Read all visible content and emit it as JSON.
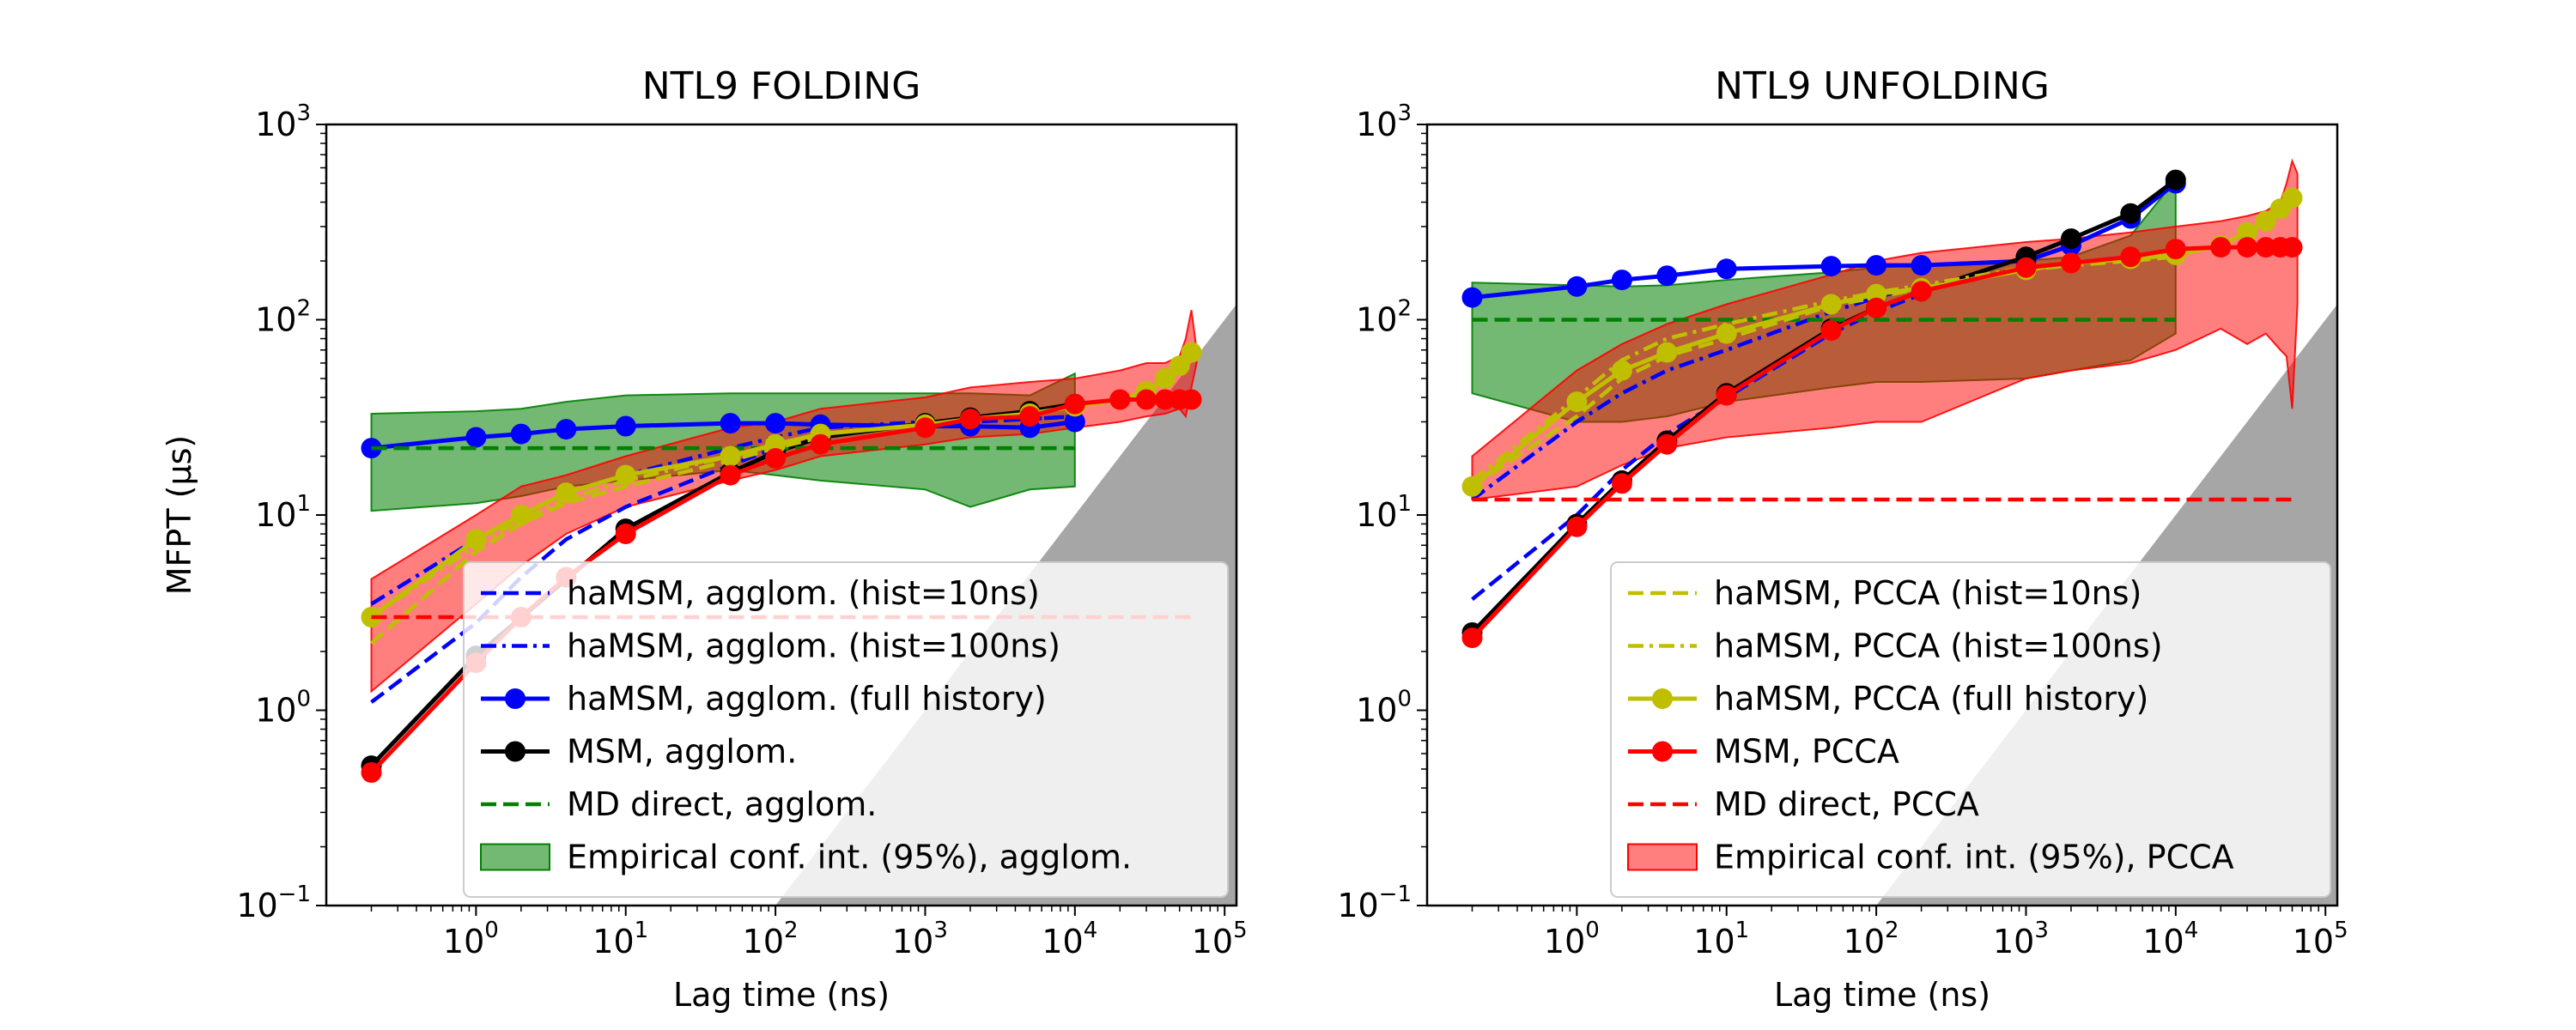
{
  "chart_data": [
    {
      "type": "line",
      "title": "NTL9 FOLDING",
      "xlabel": "Lag time (ns)",
      "ylabel": "MFPT (μs)",
      "xscale": "log",
      "yscale": "log",
      "xlim": [
        0.1,
        120000
      ],
      "ylim": [
        0.1,
        1000
      ],
      "x_ticks": [
        {
          "base": "10",
          "exp": "0"
        },
        {
          "base": "10",
          "exp": "1"
        },
        {
          "base": "10",
          "exp": "2"
        },
        {
          "base": "10",
          "exp": "3"
        },
        {
          "base": "10",
          "exp": "4"
        },
        {
          "base": "10",
          "exp": "5"
        }
      ],
      "y_ticks": [
        {
          "base": "10",
          "exp": "−1"
        },
        {
          "base": "10",
          "exp": "0"
        },
        {
          "base": "10",
          "exp": "1"
        },
        {
          "base": "10",
          "exp": "2"
        },
        {
          "base": "10",
          "exp": "3"
        }
      ],
      "legend_position": "lower-right",
      "series": [
        {
          "name": "haMSM, agglom. (hist=10ns)",
          "color": "#0000ff",
          "style": "dashed",
          "marker": false,
          "legend": true,
          "x": [
            0.2,
            1,
            2,
            4,
            10,
            50,
            100,
            200,
            1000,
            2000,
            5000,
            10000
          ],
          "y": [
            1.1,
            2.8,
            4.8,
            7.5,
            11,
            18,
            22,
            26,
            29,
            30,
            31,
            32
          ]
        },
        {
          "name": "haMSM, agglom. (hist=100ns)",
          "color": "#0000ff",
          "style": "dashdot",
          "marker": false,
          "legend": true,
          "x": [
            0.2,
            1,
            2,
            4,
            10,
            50,
            100,
            200,
            1000,
            2000,
            5000,
            10000
          ],
          "y": [
            3.5,
            7.5,
            10,
            13,
            16,
            22,
            25,
            28,
            30,
            30,
            31,
            32
          ]
        },
        {
          "name": "haMSM, agglom. (full history)",
          "color": "#0000ff",
          "style": "solid",
          "marker": true,
          "legend": true,
          "x": [
            0.2,
            1,
            2,
            4,
            10,
            50,
            100,
            200,
            1000,
            2000,
            5000,
            10000
          ],
          "y": [
            22,
            25,
            26,
            27.5,
            28.5,
            29.5,
            29.5,
            29,
            28.5,
            28.5,
            28,
            30
          ]
        },
        {
          "name": "MSM, agglom.",
          "color": "#000000",
          "style": "solid",
          "marker": true,
          "legend": true,
          "x": [
            0.2,
            1,
            10,
            50,
            100,
            200,
            1000,
            2000,
            5000,
            10000
          ],
          "y": [
            0.52,
            1.9,
            8.5,
            16.5,
            21,
            25,
            29.5,
            31.5,
            34,
            37
          ]
        },
        {
          "name": "MD direct, agglom.",
          "color": "#008000",
          "style": "dashed",
          "marker": false,
          "legend": true,
          "x": [
            0.2,
            10000
          ],
          "y": [
            22,
            22
          ]
        },
        {
          "name": "haMSM, PCCA (hist=10ns)",
          "color": "#bfbf00",
          "style": "dashed",
          "marker": false,
          "legend": false,
          "x": [
            0.2,
            1,
            2,
            4,
            10,
            50,
            100,
            200
          ],
          "y": [
            2.2,
            6.5,
            9,
            11.5,
            14,
            19,
            22,
            25
          ]
        },
        {
          "name": "haMSM, PCCA (hist=100ns)",
          "color": "#bfbf00",
          "style": "dashdot",
          "marker": false,
          "legend": false,
          "x": [
            0.2,
            1,
            2,
            4,
            10,
            50,
            100,
            200
          ],
          "y": [
            3,
            7,
            9.5,
            12,
            15,
            20,
            23,
            26
          ]
        },
        {
          "name": "haMSM, PCCA (full history)",
          "color": "#bfbf00",
          "style": "solid",
          "marker": true,
          "legend": false,
          "x": [
            0.2,
            1,
            2,
            4,
            10,
            50,
            100,
            200,
            1000,
            2000,
            5000,
            10000,
            20000,
            30000,
            40000,
            50000,
            60000
          ],
          "y": [
            3,
            7.5,
            10,
            13,
            16,
            20,
            23,
            26,
            29,
            31,
            33,
            36,
            39,
            43,
            50,
            58,
            68
          ]
        },
        {
          "name": "MSM, PCCA",
          "color": "#ff0000",
          "style": "solid",
          "marker": true,
          "legend": false,
          "x": [
            0.2,
            1,
            2,
            4,
            10,
            50,
            100,
            200,
            1000,
            2000,
            5000,
            10000,
            20000,
            30000,
            40000,
            50000,
            60000
          ],
          "y": [
            0.48,
            1.75,
            3,
            4.8,
            8,
            16,
            19.5,
            23,
            28,
            31,
            32,
            37,
            39,
            39,
            39,
            39,
            39
          ]
        },
        {
          "name": "MD direct, PCCA",
          "color": "#ff0000",
          "style": "dashed",
          "marker": false,
          "legend": false,
          "x": [
            0.2,
            60000
          ],
          "y": [
            3,
            3
          ]
        }
      ],
      "bands": [
        {
          "name": "Empirical conf. int. (95%), agglom.",
          "color": "#008000",
          "opacity": 0.55,
          "legend": true,
          "x": [
            0.2,
            1,
            2,
            4,
            10,
            50,
            100,
            200,
            1000,
            2000,
            5000,
            10000
          ],
          "lower": [
            10.5,
            11.5,
            12.5,
            14,
            15,
            17,
            16,
            15,
            13.5,
            11,
            13.5,
            14
          ],
          "upper": [
            33,
            34,
            35,
            38,
            41,
            42,
            42,
            42,
            42,
            42,
            41,
            53
          ]
        },
        {
          "name": "Empirical conf. int. (95%), PCCA",
          "color": "#ff0000",
          "opacity": 0.5,
          "legend": false,
          "x": [
            0.2,
            1,
            2,
            4,
            10,
            50,
            100,
            200,
            1000,
            2000,
            5000,
            10000,
            20000,
            30000,
            40000,
            50000,
            55000,
            60000,
            65000
          ],
          "lower": [
            1.25,
            3.5,
            5.5,
            8,
            11,
            15,
            17,
            20,
            23,
            25,
            26,
            28,
            30,
            32,
            33,
            35,
            32,
            45,
            60
          ],
          "upper": [
            4.7,
            10,
            14,
            16,
            20,
            28,
            30,
            35,
            40,
            45,
            48,
            50,
            55,
            60,
            60,
            65,
            80,
            112,
            70
          ]
        }
      ],
      "shaded_region": {
        "color": "#a6a6a6"
      }
    },
    {
      "type": "line",
      "title": "NTL9 UNFOLDING",
      "xlabel": "Lag time (ns)",
      "ylabel": "",
      "xscale": "log",
      "yscale": "log",
      "xlim": [
        0.1,
        120000
      ],
      "ylim": [
        0.1,
        1000
      ],
      "x_ticks": [
        {
          "base": "10",
          "exp": "0"
        },
        {
          "base": "10",
          "exp": "1"
        },
        {
          "base": "10",
          "exp": "2"
        },
        {
          "base": "10",
          "exp": "3"
        },
        {
          "base": "10",
          "exp": "4"
        },
        {
          "base": "10",
          "exp": "5"
        }
      ],
      "y_ticks": [
        {
          "base": "10",
          "exp": "−1"
        },
        {
          "base": "10",
          "exp": "0"
        },
        {
          "base": "10",
          "exp": "1"
        },
        {
          "base": "10",
          "exp": "2"
        },
        {
          "base": "10",
          "exp": "3"
        }
      ],
      "legend_position": "lower-right",
      "series": [
        {
          "name": "haMSM, agglom. (hist=10ns)",
          "color": "#0000ff",
          "style": "dashed",
          "marker": false,
          "legend": false,
          "x": [
            0.2,
            1,
            2,
            4,
            10,
            50,
            100,
            200
          ],
          "y": [
            3.7,
            10,
            17,
            26,
            40,
            85,
            110,
            135
          ]
        },
        {
          "name": "haMSM, agglom. (hist=100ns)",
          "color": "#0000ff",
          "style": "dashdot",
          "marker": false,
          "legend": false,
          "x": [
            0.2,
            1,
            2,
            4,
            10,
            50,
            100,
            200
          ],
          "y": [
            12,
            30,
            42,
            55,
            70,
            110,
            130,
            150
          ]
        },
        {
          "name": "haMSM, agglom. (full history)",
          "color": "#0000ff",
          "style": "solid",
          "marker": true,
          "legend": false,
          "x": [
            0.2,
            1,
            2,
            4,
            10,
            50,
            100,
            200,
            1000,
            2000,
            5000,
            10000
          ],
          "y": [
            130,
            148,
            160,
            168,
            182,
            188,
            190,
            190,
            200,
            240,
            330,
            500
          ]
        },
        {
          "name": "MSM, agglom.",
          "color": "#000000",
          "style": "solid",
          "marker": true,
          "legend": false,
          "x": [
            0.2,
            1,
            2,
            4,
            10,
            50,
            100,
            200,
            1000,
            2000,
            5000,
            10000
          ],
          "y": [
            2.5,
            9,
            15,
            24,
            42,
            90,
            115,
            140,
            210,
            260,
            350,
            520
          ]
        },
        {
          "name": "MD direct, agglom.",
          "color": "#008000",
          "style": "dashed",
          "marker": false,
          "legend": false,
          "x": [
            0.2,
            10000
          ],
          "y": [
            100,
            100
          ]
        },
        {
          "name": "haMSM, PCCA (hist=10ns)",
          "color": "#bfbf00",
          "style": "dashed",
          "marker": false,
          "legend": true,
          "x": [
            0.2,
            1,
            2,
            4,
            10,
            50,
            100,
            200,
            1000,
            2000,
            5000,
            10000
          ],
          "y": [
            14,
            32,
            50,
            65,
            80,
            118,
            130,
            145,
            180,
            190,
            200,
            210
          ]
        },
        {
          "name": "haMSM, PCCA (hist=100ns)",
          "color": "#bfbf00",
          "style": "dashdot",
          "marker": false,
          "legend": true,
          "x": [
            0.2,
            1,
            2,
            4,
            10,
            50,
            100,
            200,
            1000,
            2000,
            5000,
            10000
          ],
          "y": [
            15,
            40,
            62,
            80,
            95,
            125,
            138,
            150,
            185,
            195,
            205,
            215
          ]
        },
        {
          "name": "haMSM, PCCA (full history)",
          "color": "#bfbf00",
          "style": "solid",
          "marker": true,
          "legend": true,
          "x": [
            0.2,
            1,
            2,
            4,
            10,
            50,
            100,
            200,
            1000,
            2000,
            5000,
            10000,
            20000,
            30000,
            40000,
            50000,
            60000
          ],
          "y": [
            14,
            38,
            55,
            68,
            85,
            120,
            135,
            145,
            180,
            195,
            205,
            215,
            240,
            280,
            320,
            370,
            420
          ]
        },
        {
          "name": "MSM, PCCA",
          "color": "#ff0000",
          "style": "solid",
          "marker": true,
          "legend": true,
          "x": [
            0.2,
            1,
            2,
            4,
            10,
            50,
            100,
            200,
            1000,
            2000,
            5000,
            10000,
            20000,
            30000,
            40000,
            50000,
            60000
          ],
          "y": [
            2.35,
            8.7,
            14.5,
            23,
            41,
            88,
            115,
            140,
            185,
            195,
            210,
            230,
            235,
            235,
            235,
            235,
            235
          ]
        },
        {
          "name": "MD direct, PCCA",
          "color": "#ff0000",
          "style": "dashed",
          "marker": false,
          "legend": true,
          "x": [
            0.2,
            60000
          ],
          "y": [
            12,
            12
          ]
        }
      ],
      "bands": [
        {
          "name": "Empirical conf. int. (95%), agglom.",
          "color": "#008000",
          "opacity": 0.55,
          "legend": false,
          "x": [
            0.2,
            1,
            2,
            4,
            10,
            50,
            100,
            200,
            1000,
            2000,
            5000,
            10000
          ],
          "lower": [
            42,
            30,
            30,
            32,
            38,
            45,
            48,
            48,
            50,
            55,
            62,
            85
          ],
          "upper": [
            155,
            150,
            148,
            150,
            160,
            175,
            185,
            190,
            200,
            210,
            270,
            520
          ]
        },
        {
          "name": "Empirical conf. int. (95%), PCCA",
          "color": "#ff0000",
          "opacity": 0.5,
          "legend": true,
          "x": [
            0.2,
            1,
            2,
            4,
            10,
            50,
            100,
            200,
            1000,
            2000,
            5000,
            10000,
            20000,
            30000,
            40000,
            50000,
            55000,
            60000,
            65000
          ],
          "lower": [
            12,
            14,
            18,
            22,
            25,
            28,
            30,
            30,
            50,
            55,
            60,
            70,
            90,
            75,
            85,
            70,
            65,
            35,
            120
          ],
          "upper": [
            20,
            55,
            75,
            95,
            120,
            170,
            200,
            220,
            250,
            260,
            280,
            300,
            320,
            340,
            360,
            400,
            500,
            650,
            560
          ]
        }
      ],
      "shaded_region": {
        "color": "#a6a6a6"
      }
    }
  ]
}
